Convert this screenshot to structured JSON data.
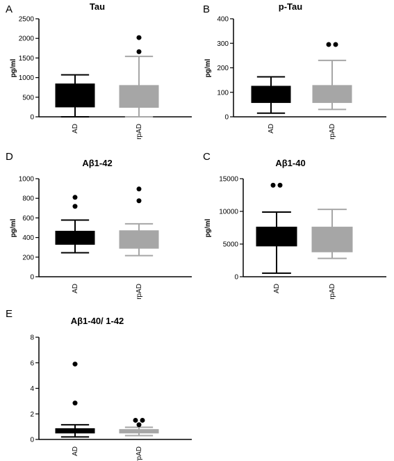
{
  "chart_data": [
    {
      "panel": "A",
      "type": "box",
      "title": "Tau",
      "ylabel": "pg/ml",
      "ylim": [
        0,
        2500
      ],
      "yticks": [
        "0",
        "500",
        "1000",
        "1500",
        "2000",
        "2500"
      ],
      "categories": [
        "AD",
        "rpAD"
      ],
      "colors": [
        "#000000",
        "#a6a6a6"
      ],
      "boxes": [
        {
          "min": 0,
          "q1": 250,
          "median": 520,
          "q3": 840,
          "max": 1070,
          "outliers": []
        },
        {
          "min": 0,
          "q1": 240,
          "median": 510,
          "q3": 800,
          "max": 1540,
          "outliers": [
            1660,
            2020
          ]
        }
      ]
    },
    {
      "panel": "B",
      "type": "box",
      "title": "p-Tau",
      "ylabel": "pg/ml",
      "ylim": [
        0,
        400
      ],
      "yticks": [
        "0",
        "100",
        "200",
        "300",
        "400"
      ],
      "categories": [
        "AD",
        "rpAD"
      ],
      "colors": [
        "#000000",
        "#a6a6a6"
      ],
      "boxes": [
        {
          "min": 15,
          "q1": 58,
          "median": 90,
          "q3": 125,
          "max": 163,
          "outliers": []
        },
        {
          "min": 30,
          "q1": 58,
          "median": 95,
          "q3": 128,
          "max": 230,
          "outliers": [
            295,
            295
          ]
        }
      ]
    },
    {
      "panel": "D",
      "type": "box",
      "title": "Aβ1-42",
      "ylabel": "pg/ml",
      "ylim": [
        0,
        1000
      ],
      "yticks": [
        "0",
        "200",
        "400",
        "600",
        "800",
        "1000"
      ],
      "categories": [
        "AD",
        "rpAD"
      ],
      "colors": [
        "#000000",
        "#a6a6a6"
      ],
      "boxes": [
        {
          "min": 245,
          "q1": 330,
          "median": 400,
          "q3": 465,
          "max": 578,
          "outliers": [
            718,
            810
          ]
        },
        {
          "min": 215,
          "q1": 290,
          "median": 390,
          "q3": 470,
          "max": 540,
          "outliers": [
            775,
            895
          ]
        }
      ]
    },
    {
      "panel": "C",
      "type": "box",
      "title": "Aβ1-40",
      "ylabel": "pg/ml",
      "ylim": [
        0,
        15000
      ],
      "yticks": [
        "0",
        "5000",
        "10000",
        "15000"
      ],
      "categories": [
        "AD",
        "rpAD"
      ],
      "colors": [
        "#000000",
        "#a6a6a6"
      ],
      "boxes": [
        {
          "min": 550,
          "q1": 4700,
          "median": 6000,
          "q3": 7600,
          "max": 9900,
          "outliers": [
            14000,
            14000
          ]
        },
        {
          "min": 2800,
          "q1": 3800,
          "median": 5800,
          "q3": 7600,
          "max": 10300,
          "outliers": []
        }
      ]
    },
    {
      "panel": "E",
      "type": "box",
      "title": "Aβ1-40/ 1-42",
      "ylabel": "",
      "ylim": [
        0,
        8
      ],
      "yticks": [
        "0",
        "2",
        "4",
        "6",
        "8"
      ],
      "categories": [
        "AD",
        "rpAD"
      ],
      "colors": [
        "#000000",
        "#a6a6a6"
      ],
      "boxes": [
        {
          "min": 0.2,
          "q1": 0.5,
          "median": 0.7,
          "q3": 0.85,
          "max": 1.15,
          "outliers": [
            2.85,
            5.9
          ]
        },
        {
          "min": 0.3,
          "q1": 0.5,
          "median": 0.6,
          "q3": 0.78,
          "max": 0.95,
          "outliers": [
            1.15,
            1.5,
            1.5
          ]
        }
      ]
    }
  ]
}
